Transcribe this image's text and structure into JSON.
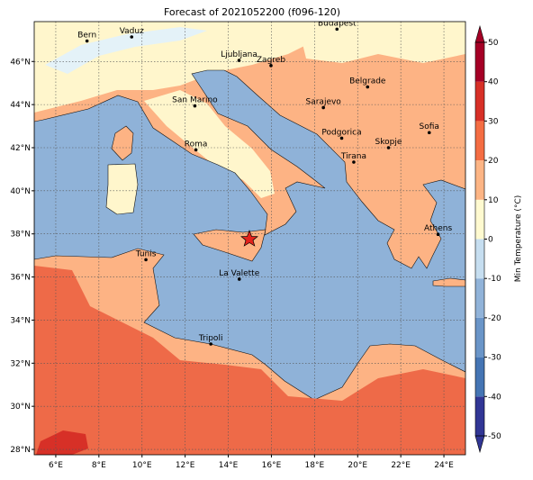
{
  "map": {
    "title": "Forecast of 2021052200 (f096-120)",
    "lon_lim": [
      5,
      25
    ],
    "lat_lim": [
      27.75,
      47.85
    ],
    "lon_ticks": [
      {
        "value": 6,
        "label": "6°E"
      },
      {
        "value": 8,
        "label": "8°E"
      },
      {
        "value": 10,
        "label": "10°E"
      },
      {
        "value": 12,
        "label": "12°E"
      },
      {
        "value": 14,
        "label": "14°E"
      },
      {
        "value": 16,
        "label": "16°E"
      },
      {
        "value": 18,
        "label": "18°E"
      },
      {
        "value": 20,
        "label": "20°E"
      },
      {
        "value": 22,
        "label": "22°E"
      },
      {
        "value": 24,
        "label": "24°E"
      }
    ],
    "lat_ticks": [
      {
        "value": 28,
        "label": "28°N"
      },
      {
        "value": 30,
        "label": "30°N"
      },
      {
        "value": 32,
        "label": "32°N"
      },
      {
        "value": 34,
        "label": "34°N"
      },
      {
        "value": 36,
        "label": "36°N"
      },
      {
        "value": 38,
        "label": "38°N"
      },
      {
        "value": 40,
        "label": "40°N"
      },
      {
        "value": 42,
        "label": "42°N"
      },
      {
        "value": 44,
        "label": "44°N"
      },
      {
        "value": 46,
        "label": "46°N"
      }
    ],
    "grid": true,
    "cities": [
      "Bern",
      "Vaduz",
      "Budapest",
      "Ljubljana",
      "Zagreb",
      "Belgrade",
      "San Marino",
      "Sarajevo",
      "Sofia",
      "Podgorica",
      "Skopje",
      "Roma",
      "Tirana",
      "Athens",
      "Tunis",
      "La Valette",
      "Tripoli"
    ],
    "colorbar": {
      "label": "Min Temperature (°C)",
      "lim": [
        -50,
        50
      ],
      "ticks": [
        -50,
        -40,
        -30,
        -20,
        -10,
        0,
        10,
        20,
        30,
        40,
        50
      ],
      "colors": [
        "#313695",
        "#4575b4",
        "#6a95c8",
        "#91b3d9",
        "#c6def0",
        "#fffad0",
        "#fdb585",
        "#f46d43",
        "#d73027",
        "#a50026"
      ]
    }
  }
}
